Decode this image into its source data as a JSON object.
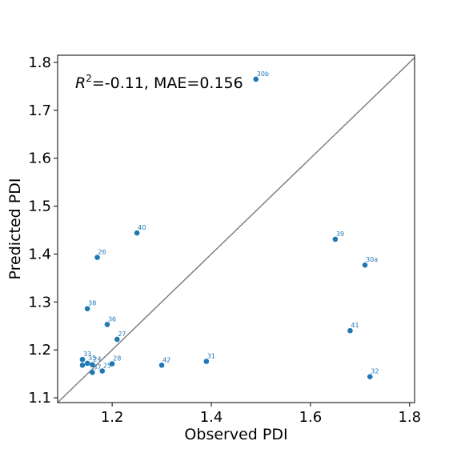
{
  "chart_data": {
    "type": "scatter",
    "xlabel": "Observed PDI",
    "ylabel": "Predicted PDI",
    "xlim": [
      1.09,
      1.81
    ],
    "ylim": [
      1.09,
      1.815
    ],
    "xticks": [
      1.2,
      1.4,
      1.6,
      1.8
    ],
    "yticks": [
      1.1,
      1.2,
      1.3,
      1.4,
      1.5,
      1.6,
      1.7,
      1.8
    ],
    "xtick_labels": [
      "1.2",
      "1.4",
      "1.6",
      "1.8"
    ],
    "ytick_labels": [
      "1.1",
      "1.2",
      "1.3",
      "1.4",
      "1.5",
      "1.6",
      "1.7",
      "1.8"
    ],
    "annotation": "R²=-0.11, MAE=0.156",
    "identity_line": true,
    "grid": false,
    "colors": {
      "points": "#1f77b4",
      "identity": "#808080",
      "axes": "#000000"
    },
    "points": [
      {
        "label": "30b",
        "x": 1.49,
        "y": 1.765
      },
      {
        "label": "40",
        "x": 1.25,
        "y": 1.444
      },
      {
        "label": "39",
        "x": 1.65,
        "y": 1.431
      },
      {
        "label": "26",
        "x": 1.17,
        "y": 1.393
      },
      {
        "label": "30a",
        "x": 1.71,
        "y": 1.377
      },
      {
        "label": "38",
        "x": 1.15,
        "y": 1.286
      },
      {
        "label": "36",
        "x": 1.19,
        "y": 1.253
      },
      {
        "label": "41",
        "x": 1.68,
        "y": 1.24
      },
      {
        "label": "27",
        "x": 1.21,
        "y": 1.222
      },
      {
        "label": "33",
        "x": 1.14,
        "y": 1.18
      },
      {
        "label": "35",
        "x": 1.15,
        "y": 1.172
      },
      {
        "label": "24",
        "x": 1.16,
        "y": 1.169
      },
      {
        "label": "28",
        "x": 1.2,
        "y": 1.171
      },
      {
        "label": "",
        "x": 1.14,
        "y": 1.168
      },
      {
        "label": "31",
        "x": 1.39,
        "y": 1.176
      },
      {
        "label": "42",
        "x": 1.3,
        "y": 1.168
      },
      {
        "label": "37",
        "x": 1.16,
        "y": 1.153
      },
      {
        "label": "25",
        "x": 1.18,
        "y": 1.156
      },
      {
        "label": "32",
        "x": 1.72,
        "y": 1.144
      }
    ]
  }
}
